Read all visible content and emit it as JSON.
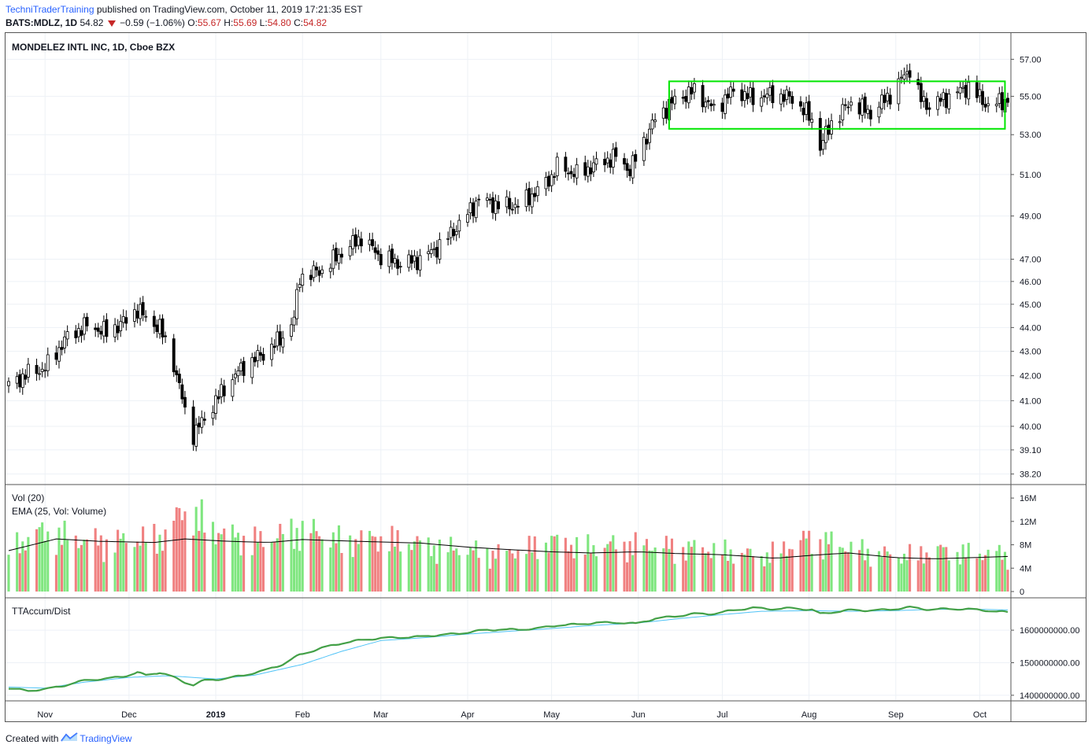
{
  "header": {
    "publisher": "TechniTraderTraining",
    "published_text": "published on TradingView.com, October 11, 2019 17:21:35 EST",
    "symbol": "BATS:MDLZ, 1D",
    "last": "54.82",
    "change": "−0.59 (−1.06%)",
    "o_label": "O:",
    "o_value": "55.67",
    "h_label": "H:",
    "h_value": "55.69",
    "l_label": "L:",
    "l_value": "54.80",
    "c_label": "C:",
    "c_value": "54.82"
  },
  "footer": {
    "created_with": "Created with",
    "brand": "TradingView"
  },
  "chart_data": [
    {
      "type": "candlestick",
      "title": "MONDELEZ INTL INC, 1D, Cboe BZX",
      "y_scale": "log",
      "ylim": [
        37.9,
        57.8
      ],
      "yticks": [
        "57.00",
        "55.00",
        "53.00",
        "51.00",
        "49.00",
        "47.00",
        "46.00",
        "45.00",
        "44.00",
        "43.00",
        "42.00",
        "41.00",
        "40.00",
        "39.10",
        "38.20"
      ],
      "xticks": [
        "Nov",
        "Dec",
        "2019",
        "Feb",
        "Mar",
        "Apr",
        "May",
        "Jun",
        "Jul",
        "Aug",
        "Sep",
        "Oct"
      ],
      "x_range": [
        "2018-10-19",
        "2019-10-11"
      ],
      "close_path": [
        [
          "2018-10-19",
          41.6
        ],
        [
          "2018-10-26",
          42.1
        ],
        [
          "2018-11-01",
          42.3
        ],
        [
          "2018-11-09",
          43.6
        ],
        [
          "2018-11-16",
          44.1
        ],
        [
          "2018-11-23",
          43.8
        ],
        [
          "2018-11-30",
          44.3
        ],
        [
          "2018-12-04",
          44.8
        ],
        [
          "2018-12-07",
          44.4
        ],
        [
          "2018-12-12",
          44.0
        ],
        [
          "2018-12-17",
          42.5
        ],
        [
          "2018-12-21",
          40.6
        ],
        [
          "2018-12-24",
          39.7
        ],
        [
          "2018-12-28",
          40.3
        ],
        [
          "2019-01-04",
          41.5
        ],
        [
          "2019-01-11",
          42.4
        ],
        [
          "2019-01-18",
          42.9
        ],
        [
          "2019-01-25",
          43.6
        ],
        [
          "2019-01-29",
          44.4
        ],
        [
          "2019-01-31",
          46.2
        ],
        [
          "2019-02-08",
          46.5
        ],
        [
          "2019-02-15",
          47.3
        ],
        [
          "2019-02-22",
          48.0
        ],
        [
          "2019-03-01",
          47.1
        ],
        [
          "2019-03-08",
          46.8
        ],
        [
          "2019-03-15",
          47.0
        ],
        [
          "2019-03-22",
          47.6
        ],
        [
          "2019-03-29",
          48.6
        ],
        [
          "2019-04-05",
          49.8
        ],
        [
          "2019-04-12",
          49.5
        ],
        [
          "2019-04-19",
          49.5
        ],
        [
          "2019-04-26",
          50.2
        ],
        [
          "2019-05-01",
          50.9
        ],
        [
          "2019-05-03",
          51.4
        ],
        [
          "2019-05-10",
          51.0
        ],
        [
          "2019-05-17",
          51.5
        ],
        [
          "2019-05-24",
          51.9
        ],
        [
          "2019-05-29",
          51.2
        ],
        [
          "2019-05-31",
          51.8
        ],
        [
          "2019-06-07",
          53.8
        ],
        [
          "2019-06-14",
          54.8
        ],
        [
          "2019-06-21",
          55.3
        ],
        [
          "2019-06-28",
          54.3
        ],
        [
          "2019-07-05",
          55.3
        ],
        [
          "2019-07-12",
          54.9
        ],
        [
          "2019-07-19",
          55.1
        ],
        [
          "2019-07-26",
          54.9
        ],
        [
          "2019-08-02",
          53.8
        ],
        [
          "2019-08-05",
          52.4
        ],
        [
          "2019-08-09",
          53.6
        ],
        [
          "2019-08-16",
          54.7
        ],
        [
          "2019-08-23",
          54.1
        ],
        [
          "2019-08-30",
          55.1
        ],
        [
          "2019-09-06",
          56.5
        ],
        [
          "2019-09-10",
          54.8
        ],
        [
          "2019-09-13",
          54.5
        ],
        [
          "2019-09-20",
          55.0
        ],
        [
          "2019-09-27",
          55.5
        ],
        [
          "2019-10-04",
          54.5
        ],
        [
          "2019-10-11",
          54.82
        ]
      ],
      "annotation": {
        "type": "rectangle",
        "color": "#00e600",
        "x_from": "2019-06-12",
        "x_to": "2019-10-10",
        "y_from": 53.3,
        "y_to": 55.8
      }
    },
    {
      "type": "bar",
      "title": "Vol (20)",
      "series_names": [
        "Volume",
        "EMA (25, Vol: Volume)"
      ],
      "ylim": [
        0,
        17.5
      ],
      "unit": "M",
      "yticks": [
        "16M",
        "12M",
        "8M",
        "4M",
        "0"
      ],
      "colors": {
        "up": "#7fe67f",
        "down": "#f08080",
        "ema": "#000000"
      },
      "volume_path_M": [
        [
          "2018-10-19",
          7.0
        ],
        [
          "2018-11-01",
          9.5
        ],
        [
          "2018-11-15",
          8.0
        ],
        [
          "2018-12-01",
          8.0
        ],
        [
          "2018-12-14",
          9.0
        ],
        [
          "2018-12-21",
          13.0
        ],
        [
          "2019-01-04",
          9.0
        ],
        [
          "2019-01-18",
          8.0
        ],
        [
          "2019-01-31",
          10.0
        ],
        [
          "2019-02-15",
          8.0
        ],
        [
          "2019-03-01",
          8.5
        ],
        [
          "2019-03-15",
          7.5
        ],
        [
          "2019-04-01",
          6.5
        ],
        [
          "2019-04-15",
          6.0
        ],
        [
          "2019-05-01",
          8.0
        ],
        [
          "2019-05-15",
          7.0
        ],
        [
          "2019-05-29",
          7.5
        ],
        [
          "2019-06-15",
          7.0
        ],
        [
          "2019-07-01",
          6.5
        ],
        [
          "2019-07-15",
          5.5
        ],
        [
          "2019-08-02",
          8.5
        ],
        [
          "2019-08-15",
          7.0
        ],
        [
          "2019-09-01",
          5.5
        ],
        [
          "2019-09-15",
          6.5
        ],
        [
          "2019-10-01",
          6.0
        ],
        [
          "2019-10-11",
          6.0
        ]
      ],
      "ema_path_M": [
        [
          "2018-10-19",
          7.0
        ],
        [
          "2018-11-05",
          9.0
        ],
        [
          "2018-11-20",
          8.6
        ],
        [
          "2018-12-10",
          8.4
        ],
        [
          "2018-12-21",
          9.0
        ],
        [
          "2019-01-05",
          8.6
        ],
        [
          "2019-01-20",
          8.4
        ],
        [
          "2019-02-01",
          8.9
        ],
        [
          "2019-02-20",
          8.6
        ],
        [
          "2019-03-15",
          8.3
        ],
        [
          "2019-04-01",
          7.6
        ],
        [
          "2019-04-15",
          7.2
        ],
        [
          "2019-05-01",
          6.8
        ],
        [
          "2019-05-15",
          6.6
        ],
        [
          "2019-06-01",
          6.8
        ],
        [
          "2019-06-15",
          6.5
        ],
        [
          "2019-07-01",
          6.3
        ],
        [
          "2019-07-20",
          5.7
        ],
        [
          "2019-08-02",
          6.2
        ],
        [
          "2019-08-15",
          6.6
        ],
        [
          "2019-09-01",
          5.8
        ],
        [
          "2019-09-15",
          5.6
        ],
        [
          "2019-10-11",
          6.0
        ]
      ]
    },
    {
      "type": "line",
      "title": "TTAccum/Dist",
      "ylim": [
        1390000000,
        1680000000
      ],
      "yticks": [
        "1600000000.00",
        "1500000000.00",
        "1400000000.00"
      ],
      "series": [
        {
          "color": "#43a047",
          "values": [
            [
              "2018-10-19",
              1420
            ],
            [
              "2018-10-26",
              1415
            ],
            [
              "2018-11-01",
              1418
            ],
            [
              "2018-11-09",
              1432
            ],
            [
              "2018-11-16",
              1448
            ],
            [
              "2018-11-23",
              1450
            ],
            [
              "2018-11-30",
              1460
            ],
            [
              "2018-12-04",
              1470
            ],
            [
              "2018-12-07",
              1462
            ],
            [
              "2018-12-12",
              1470
            ],
            [
              "2018-12-17",
              1455
            ],
            [
              "2018-12-21",
              1440
            ],
            [
              "2018-12-24",
              1432
            ],
            [
              "2018-12-28",
              1446
            ],
            [
              "2019-01-04",
              1450
            ],
            [
              "2019-01-11",
              1462
            ],
            [
              "2019-01-18",
              1475
            ],
            [
              "2019-01-25",
              1495
            ],
            [
              "2019-01-29",
              1515
            ],
            [
              "2019-01-31",
              1525
            ],
            [
              "2019-02-08",
              1545
            ],
            [
              "2019-02-15",
              1560
            ],
            [
              "2019-02-22",
              1570
            ],
            [
              "2019-03-01",
              1575
            ],
            [
              "2019-03-08",
              1578
            ],
            [
              "2019-03-15",
              1580
            ],
            [
              "2019-03-22",
              1585
            ],
            [
              "2019-03-29",
              1590
            ],
            [
              "2019-04-05",
              1598
            ],
            [
              "2019-04-12",
              1602
            ],
            [
              "2019-04-19",
              1602
            ],
            [
              "2019-04-26",
              1605
            ],
            [
              "2019-05-03",
              1615
            ],
            [
              "2019-05-10",
              1618
            ],
            [
              "2019-05-17",
              1622
            ],
            [
              "2019-05-24",
              1624
            ],
            [
              "2019-05-31",
              1620
            ],
            [
              "2019-06-07",
              1635
            ],
            [
              "2019-06-14",
              1643
            ],
            [
              "2019-06-21",
              1650
            ],
            [
              "2019-06-28",
              1650
            ],
            [
              "2019-07-05",
              1662
            ],
            [
              "2019-07-12",
              1668
            ],
            [
              "2019-07-19",
              1665
            ],
            [
              "2019-07-26",
              1668
            ],
            [
              "2019-08-02",
              1662
            ],
            [
              "2019-08-05",
              1650
            ],
            [
              "2019-08-09",
              1655
            ],
            [
              "2019-08-16",
              1662
            ],
            [
              "2019-08-23",
              1660
            ],
            [
              "2019-08-30",
              1664
            ],
            [
              "2019-09-06",
              1670
            ],
            [
              "2019-09-13",
              1663
            ],
            [
              "2019-09-20",
              1666
            ],
            [
              "2019-09-27",
              1664
            ],
            [
              "2019-10-04",
              1660
            ],
            [
              "2019-10-11",
              1655
            ]
          ]
        },
        {
          "color": "#4fc3f7",
          "values": [
            [
              "2018-10-19",
              1425
            ],
            [
              "2018-11-01",
              1422
            ],
            [
              "2018-11-15",
              1440
            ],
            [
              "2018-12-01",
              1455
            ],
            [
              "2018-12-15",
              1460
            ],
            [
              "2019-01-01",
              1450
            ],
            [
              "2019-01-15",
              1462
            ],
            [
              "2019-02-01",
              1495
            ],
            [
              "2019-02-15",
              1535
            ],
            [
              "2019-03-01",
              1568
            ],
            [
              "2019-03-15",
              1576
            ],
            [
              "2019-04-01",
              1588
            ],
            [
              "2019-04-15",
              1596
            ],
            [
              "2019-05-01",
              1605
            ],
            [
              "2019-05-15",
              1614
            ],
            [
              "2019-06-01",
              1622
            ],
            [
              "2019-06-15",
              1635
            ],
            [
              "2019-07-01",
              1648
            ],
            [
              "2019-07-15",
              1658
            ],
            [
              "2019-08-01",
              1660
            ],
            [
              "2019-08-15",
              1658
            ],
            [
              "2019-09-01",
              1660
            ],
            [
              "2019-09-15",
              1664
            ],
            [
              "2019-10-01",
              1664
            ],
            [
              "2019-10-11",
              1662
            ]
          ]
        }
      ]
    }
  ]
}
